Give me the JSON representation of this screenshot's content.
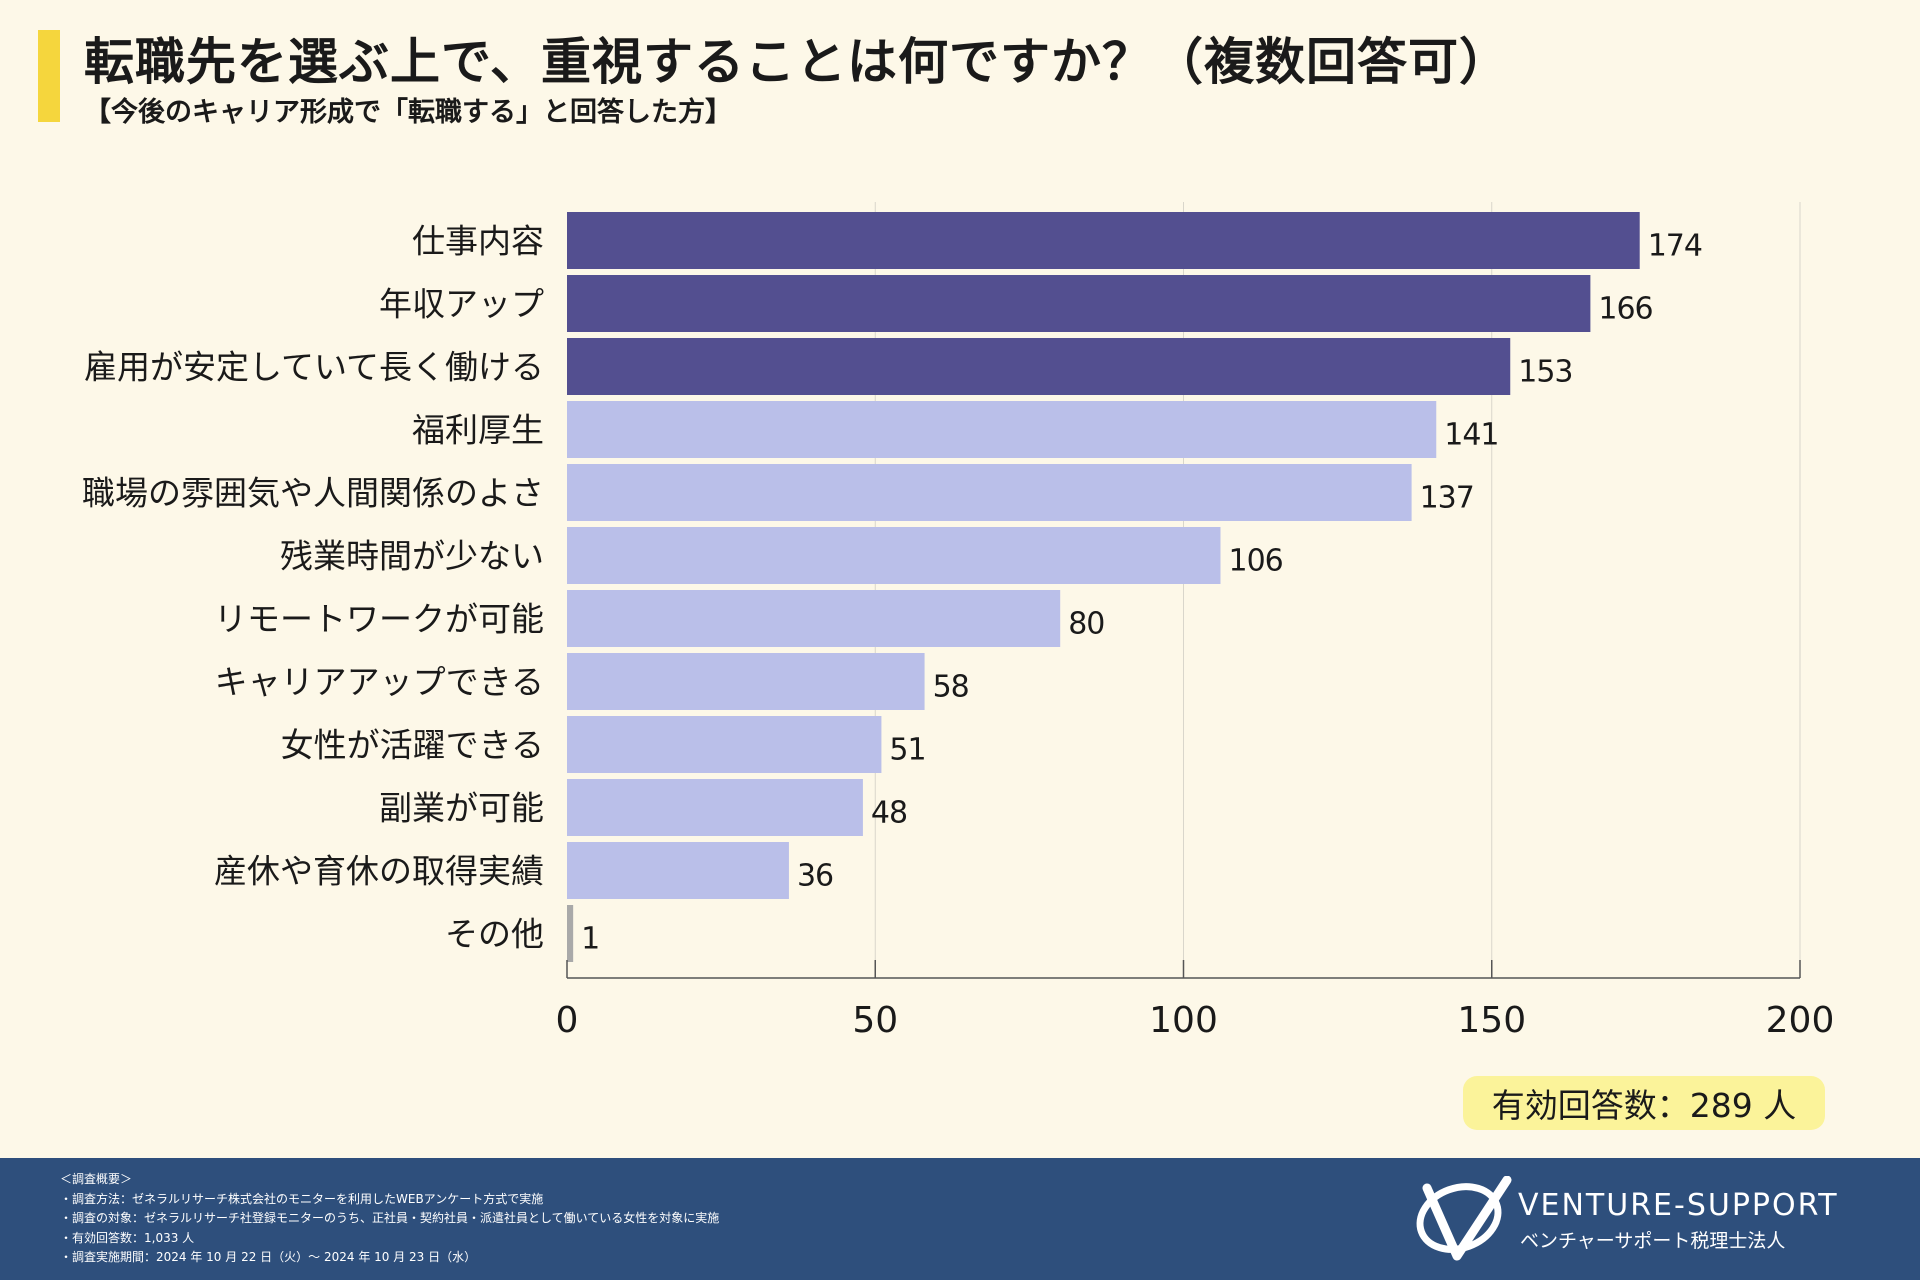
{
  "header": {
    "title": "転職先を選ぶ上で、重視することは何ですか？（複数回答可）",
    "subtitle": "【今後のキャリア形成で「転職する」と回答した方】"
  },
  "chart_data": {
    "type": "bar",
    "orientation": "horizontal",
    "title": "転職先を選ぶ上で、重視することは何ですか？（複数回答可）",
    "categories": [
      "仕事内容",
      "年収アップ",
      "雇用が安定していて長く働ける",
      "福利厚生",
      "職場の雰囲気や人間関係のよさ",
      "残業時間が少ない",
      "リモートワークが可能",
      "キャリアアップできる",
      "女性が活躍できる",
      "副業が可能",
      "産休や育休の取得実績",
      "その他"
    ],
    "values": [
      174,
      166,
      153,
      141,
      137,
      106,
      80,
      58,
      51,
      48,
      36,
      1
    ],
    "highlight_top": 3,
    "xlim": [
      0,
      200
    ],
    "xticks": [
      0,
      50,
      100,
      150,
      200
    ],
    "grid": true,
    "colors": {
      "highlight": "#534f90",
      "normal": "#babfe9",
      "other": "#a9a9a9"
    }
  },
  "respondents": {
    "label": "有効回答数：289 人"
  },
  "footer": {
    "notes": [
      "＜調査概要＞",
      "・調査方法：ゼネラルリサーチ株式会社のモニターを利用したWEBアンケート方式で実施",
      "・調査の対象：ゼネラルリサーチ社登録モニターのうち、正社員・契約社員・派遣社員として働いている女性を対象に実施",
      "・有効回答数：1,033 人",
      "・調査実施期間：2024 年 10 月 22 日（火）〜 2024 年 10 月 23 日（水）"
    ],
    "logo_name": "VENTURE-SUPPORT",
    "logo_sub": "ベンチャーサポート税理士法人"
  }
}
